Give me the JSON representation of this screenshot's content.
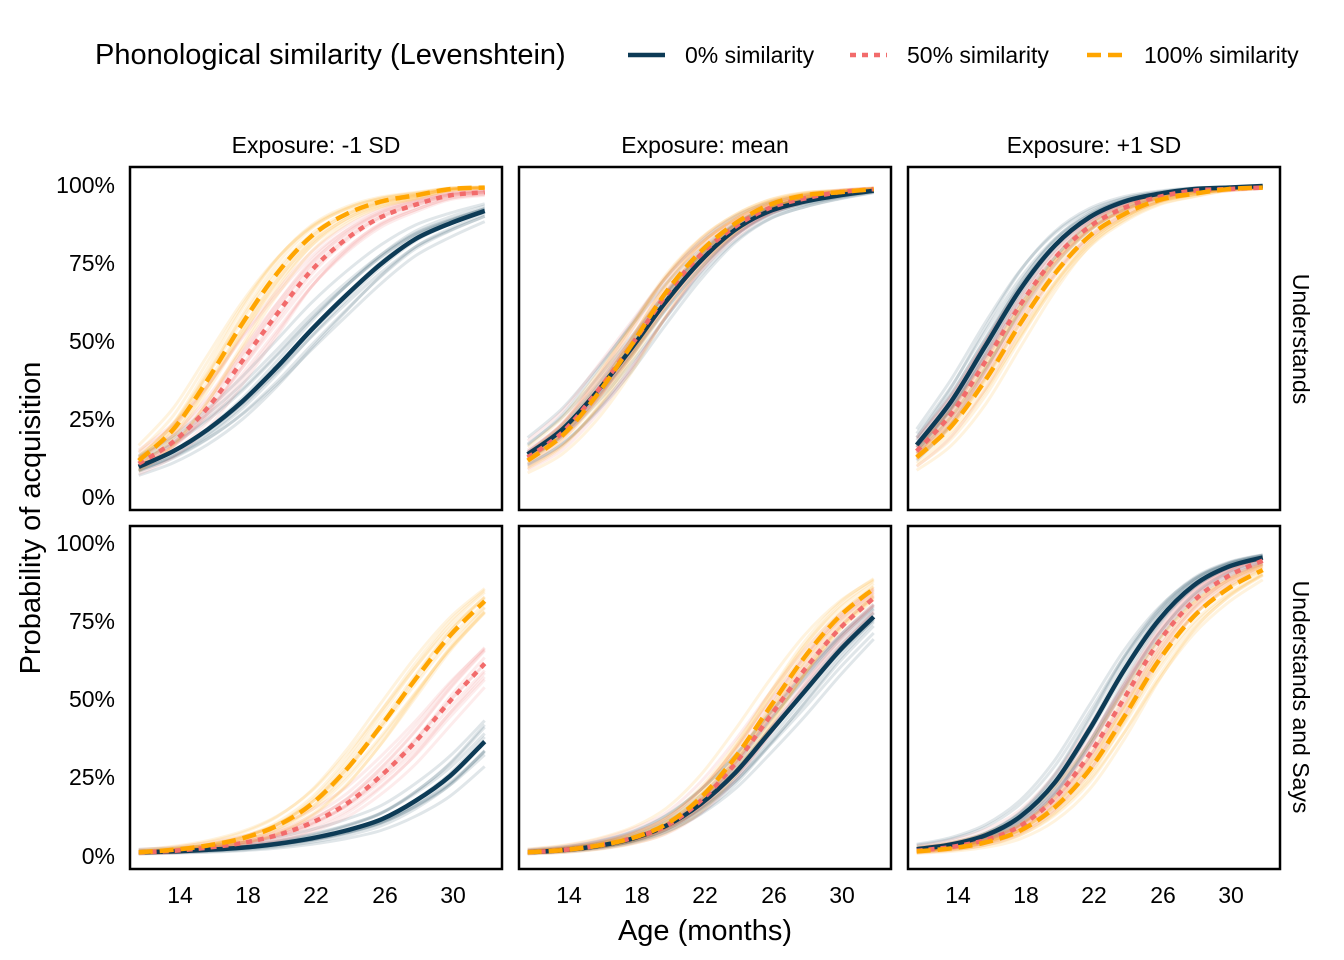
{
  "chart_data": {
    "type": "line",
    "legend": {
      "title": "Phonological similarity (Levenshtein)",
      "position": "top",
      "entries": [
        "0% similarity",
        "50% similarity",
        "100% similarity"
      ]
    },
    "xlabel": "Age (months)",
    "ylabel": "Probability of acquisition",
    "xlim": [
      11.5,
      33
    ],
    "ylim": [
      0,
      1
    ],
    "xticks": [
      14,
      18,
      22,
      26,
      30
    ],
    "xtick_labels": [
      "14",
      "18",
      "22",
      "26",
      "30"
    ],
    "yticks": [
      0,
      0.25,
      0.5,
      0.75,
      1
    ],
    "ytick_labels": [
      "0%",
      "25%",
      "50%",
      "75%",
      "100%"
    ],
    "grid": false,
    "columns": [
      "Exposure: -1 SD",
      "Exposure: mean",
      "Exposure: +1 SD"
    ],
    "rows": [
      "Understands",
      "Understands and Says"
    ],
    "series_styles": [
      {
        "name": "0% similarity",
        "color": "#0d3b56",
        "dash": "solid"
      },
      {
        "name": "50% similarity",
        "color": "#f26b6b",
        "dash": "dotted"
      },
      {
        "name": "100% similarity",
        "color": "#ffa500",
        "dash": "dashed"
      }
    ],
    "x": [
      12,
      14,
      16,
      18,
      20,
      22,
      24,
      26,
      28,
      30,
      32
    ],
    "panels": [
      {
        "row": "Understands",
        "column": "Exposure: -1 SD",
        "series": [
          {
            "name": "0% similarity",
            "values": [
              0.1,
              0.15,
              0.22,
              0.31,
              0.42,
              0.54,
              0.65,
              0.75,
              0.83,
              0.88,
              0.92
            ]
          },
          {
            "name": "50% similarity",
            "values": [
              0.11,
              0.18,
              0.29,
              0.44,
              0.59,
              0.73,
              0.83,
              0.9,
              0.94,
              0.97,
              0.98
            ]
          },
          {
            "name": "100% similarity",
            "values": [
              0.12,
              0.22,
              0.38,
              0.56,
              0.72,
              0.84,
              0.91,
              0.95,
              0.97,
              0.99,
              0.995
            ]
          }
        ]
      },
      {
        "row": "Understands",
        "column": "Exposure: mean",
        "series": [
          {
            "name": "0% similarity",
            "values": [
              0.14,
              0.22,
              0.34,
              0.48,
              0.63,
              0.76,
              0.86,
              0.92,
              0.95,
              0.97,
              0.985
            ]
          },
          {
            "name": "50% similarity",
            "values": [
              0.13,
              0.21,
              0.34,
              0.49,
              0.65,
              0.78,
              0.87,
              0.93,
              0.96,
              0.98,
              0.99
            ]
          },
          {
            "name": "100% similarity",
            "values": [
              0.12,
              0.2,
              0.33,
              0.49,
              0.66,
              0.79,
              0.88,
              0.94,
              0.97,
              0.98,
              0.99
            ]
          }
        ]
      },
      {
        "row": "Understands",
        "column": "Exposure: +1 SD",
        "series": [
          {
            "name": "0% similarity",
            "values": [
              0.17,
              0.31,
              0.49,
              0.67,
              0.81,
              0.9,
              0.95,
              0.975,
              0.99,
              0.995,
              1.0
            ]
          },
          {
            "name": "50% similarity",
            "values": [
              0.15,
              0.27,
              0.44,
              0.62,
              0.77,
              0.87,
              0.93,
              0.965,
              0.985,
              0.99,
              0.995
            ]
          },
          {
            "name": "100% similarity",
            "values": [
              0.13,
              0.23,
              0.38,
              0.56,
              0.72,
              0.84,
              0.91,
              0.955,
              0.975,
              0.99,
              0.995
            ]
          }
        ]
      },
      {
        "row": "Understands and Says",
        "column": "Exposure: -1 SD",
        "series": [
          {
            "name": "0% similarity",
            "values": [
              0.015,
              0.018,
              0.023,
              0.03,
              0.042,
              0.06,
              0.085,
              0.12,
              0.18,
              0.26,
              0.37
            ]
          },
          {
            "name": "50% similarity",
            "values": [
              0.015,
              0.02,
              0.03,
              0.045,
              0.07,
              0.11,
              0.17,
              0.26,
              0.37,
              0.5,
              0.62
            ]
          },
          {
            "name": "100% similarity",
            "values": [
              0.015,
              0.023,
              0.037,
              0.06,
              0.1,
              0.17,
              0.28,
              0.42,
              0.57,
              0.71,
              0.82
            ]
          }
        ]
      },
      {
        "row": "Understands and Says",
        "column": "Exposure: mean",
        "series": [
          {
            "name": "0% similarity",
            "values": [
              0.015,
              0.022,
              0.035,
              0.058,
              0.1,
              0.17,
              0.27,
              0.4,
              0.53,
              0.66,
              0.77
            ]
          },
          {
            "name": "50% similarity",
            "values": [
              0.015,
              0.022,
              0.036,
              0.06,
              0.1,
              0.18,
              0.3,
              0.45,
              0.6,
              0.73,
              0.83
            ]
          },
          {
            "name": "100% similarity",
            "values": [
              0.015,
              0.022,
              0.036,
              0.06,
              0.105,
              0.19,
              0.32,
              0.48,
              0.64,
              0.77,
              0.86
            ]
          }
        ]
      },
      {
        "row": "Understands and Says",
        "column": "Exposure: +1 SD",
        "series": [
          {
            "name": "0% similarity",
            "values": [
              0.025,
              0.04,
              0.07,
              0.13,
              0.24,
              0.41,
              0.6,
              0.76,
              0.87,
              0.93,
              0.96
            ]
          },
          {
            "name": "50% similarity",
            "values": [
              0.02,
              0.032,
              0.055,
              0.1,
              0.19,
              0.33,
              0.51,
              0.69,
              0.82,
              0.9,
              0.95
            ]
          },
          {
            "name": "100% similarity",
            "values": [
              0.018,
              0.028,
              0.047,
              0.085,
              0.16,
              0.28,
              0.45,
              0.63,
              0.77,
              0.86,
              0.92
            ]
          }
        ]
      }
    ]
  }
}
